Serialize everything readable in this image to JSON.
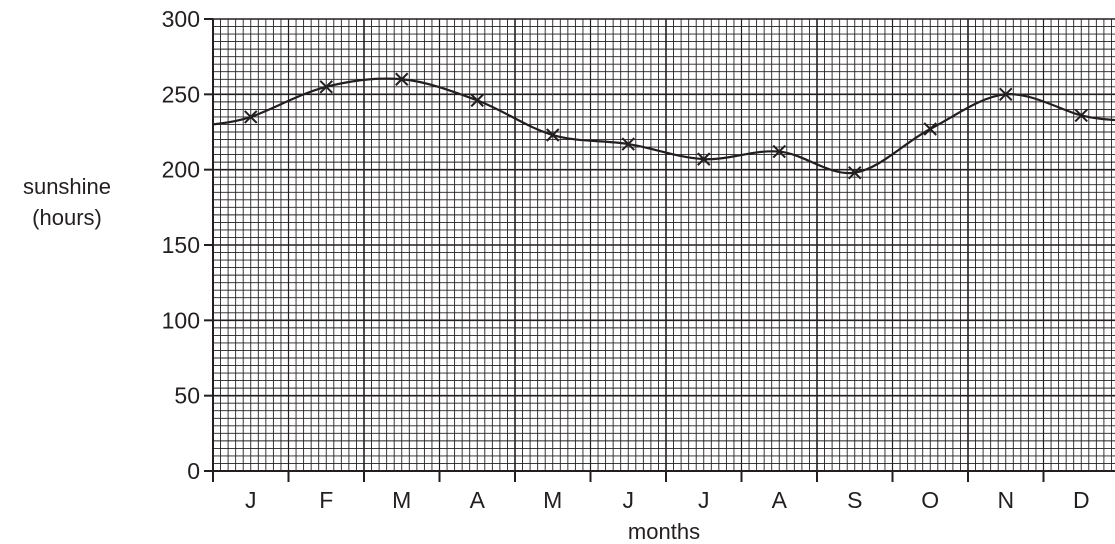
{
  "chart_data": {
    "type": "line",
    "categories": [
      "J",
      "F",
      "M",
      "A",
      "M",
      "J",
      "J",
      "A",
      "S",
      "O",
      "N",
      "D"
    ],
    "series": [
      {
        "values": [
          235,
          255,
          260,
          246,
          223,
          217,
          207,
          212,
          198,
          227,
          250,
          236
        ]
      }
    ],
    "ylabel_line1": "sunshine",
    "ylabel_line2": "(hours)",
    "xlabel": "months",
    "ylim": [
      0,
      300
    ],
    "yticks": [
      0,
      50,
      100,
      150,
      200,
      250,
      300
    ],
    "ytick_labels": [
      "0",
      "50",
      "100",
      "150",
      "200",
      "250",
      "300"
    ],
    "grid": true,
    "marker": "cross",
    "curve": "smooth"
  }
}
